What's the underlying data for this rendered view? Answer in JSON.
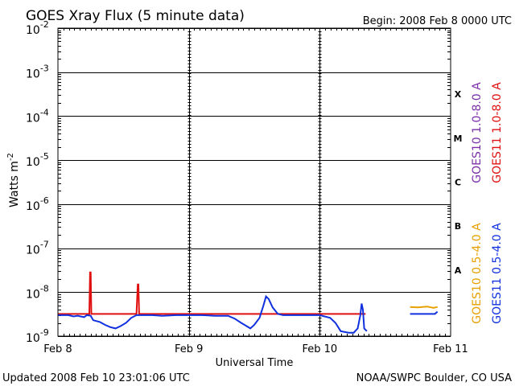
{
  "chart_data": {
    "type": "line",
    "title": "GOES Xray Flux (5 minute data)",
    "begin_label": "Begin:  2008 Feb 8 0000 UTC",
    "xlabel": "Universal Time",
    "ylabel": "Watts m",
    "ylabel_sup": "-2",
    "yscale": "log",
    "ylim": [
      1e-09,
      0.01
    ],
    "xlim_days": [
      0,
      3
    ],
    "x_ticks": [
      {
        "label": "Feb 8",
        "day": 0
      },
      {
        "label": "Feb 9",
        "day": 1
      },
      {
        "label": "Feb 10",
        "day": 2
      },
      {
        "label": "Feb 11",
        "day": 3
      }
    ],
    "y_ticks": [
      {
        "base": "10",
        "exp": "-2",
        "value": 0.01
      },
      {
        "base": "10",
        "exp": "-3",
        "value": 0.001
      },
      {
        "base": "10",
        "exp": "-4",
        "value": 0.0001
      },
      {
        "base": "10",
        "exp": "-5",
        "value": 1e-05
      },
      {
        "base": "10",
        "exp": "-6",
        "value": 1e-06
      },
      {
        "base": "10",
        "exp": "-7",
        "value": 1e-07
      },
      {
        "base": "10",
        "exp": "-8",
        "value": 1e-08
      },
      {
        "base": "10",
        "exp": "-9",
        "value": 1e-09
      }
    ],
    "flare_classes": [
      {
        "label": "X",
        "value": 0.000316
      },
      {
        "label": "M",
        "value": 3.16e-05
      },
      {
        "label": "C",
        "value": 3.16e-06
      },
      {
        "label": "B",
        "value": 3.16e-07
      },
      {
        "label": "A",
        "value": 3.16e-08
      }
    ],
    "grid": true,
    "legend_position": "right",
    "series": [
      {
        "name": "GOES10 1.0-8.0 A",
        "color": "#7b2fa8",
        "points": []
      },
      {
        "name": "GOES11 1.0-8.0 A",
        "color": "#e01010",
        "points": [
          [
            0.0,
            3.2e-09
          ],
          [
            0.24,
            3.2e-09
          ],
          [
            0.245,
            2.8e-08
          ],
          [
            0.25,
            2.8e-08
          ],
          [
            0.255,
            3.2e-09
          ],
          [
            0.6,
            3.2e-09
          ],
          [
            0.61,
            1.5e-08
          ],
          [
            0.615,
            1.5e-08
          ],
          [
            0.62,
            3.2e-09
          ],
          [
            2.35,
            3.2e-09
          ]
        ]
      },
      {
        "name": "GOES10 0.5-4.0 A",
        "color": "#e8a000",
        "points": [
          [
            2.69,
            4.6e-09
          ],
          [
            2.75,
            4.5e-09
          ],
          [
            2.82,
            4.7e-09
          ],
          [
            2.87,
            4.4e-09
          ],
          [
            2.9,
            4.6e-09
          ]
        ]
      },
      {
        "name": "GOES11 0.5-4.0 A",
        "color": "#1030e0",
        "points": [
          [
            0.0,
            3e-09
          ],
          [
            0.08,
            3e-09
          ],
          [
            0.12,
            2.8e-09
          ],
          [
            0.15,
            2.9e-09
          ],
          [
            0.2,
            2.7e-09
          ],
          [
            0.22,
            3e-09
          ],
          [
            0.25,
            2.9e-09
          ],
          [
            0.27,
            2.3e-09
          ],
          [
            0.32,
            2.1e-09
          ],
          [
            0.36,
            1.8e-09
          ],
          [
            0.4,
            1.6e-09
          ],
          [
            0.44,
            1.5e-09
          ],
          [
            0.48,
            1.7e-09
          ],
          [
            0.52,
            2e-09
          ],
          [
            0.56,
            2.6e-09
          ],
          [
            0.6,
            3e-09
          ],
          [
            0.66,
            3e-09
          ],
          [
            0.72,
            3e-09
          ],
          [
            0.8,
            2.9e-09
          ],
          [
            0.9,
            3e-09
          ],
          [
            1.0,
            3e-09
          ],
          [
            1.1,
            3e-09
          ],
          [
            1.2,
            2.9e-09
          ],
          [
            1.3,
            2.9e-09
          ],
          [
            1.35,
            2.5e-09
          ],
          [
            1.4,
            2e-09
          ],
          [
            1.44,
            1.7e-09
          ],
          [
            1.47,
            1.5e-09
          ],
          [
            1.5,
            1.8e-09
          ],
          [
            1.54,
            2.6e-09
          ],
          [
            1.57,
            5e-09
          ],
          [
            1.59,
            8e-09
          ],
          [
            1.61,
            7e-09
          ],
          [
            1.64,
            4.5e-09
          ],
          [
            1.68,
            3.2e-09
          ],
          [
            1.72,
            3e-09
          ],
          [
            1.8,
            3e-09
          ],
          [
            1.9,
            3e-09
          ],
          [
            2.0,
            3e-09
          ],
          [
            2.08,
            2.6e-09
          ],
          [
            2.12,
            2e-09
          ],
          [
            2.16,
            1.3e-09
          ],
          [
            2.22,
            1.2e-09
          ],
          [
            2.26,
            1.2e-09
          ],
          [
            2.29,
            1.5e-09
          ],
          [
            2.31,
            3e-09
          ],
          [
            2.32,
            5.5e-09
          ],
          [
            2.33,
            4e-09
          ],
          [
            2.34,
            1.5e-09
          ],
          [
            2.36,
            1.3e-09
          ],
          [
            2.62,
            null
          ],
          [
            2.69,
            3.2e-09
          ],
          [
            2.88,
            3.2e-09
          ],
          [
            2.89,
            3.4e-09
          ],
          [
            2.9,
            3.6e-09
          ]
        ]
      }
    ]
  },
  "footer": {
    "updated": "Updated 2008 Feb 10 23:01:06 UTC",
    "source": "NOAA/SWPC Boulder, CO USA"
  }
}
